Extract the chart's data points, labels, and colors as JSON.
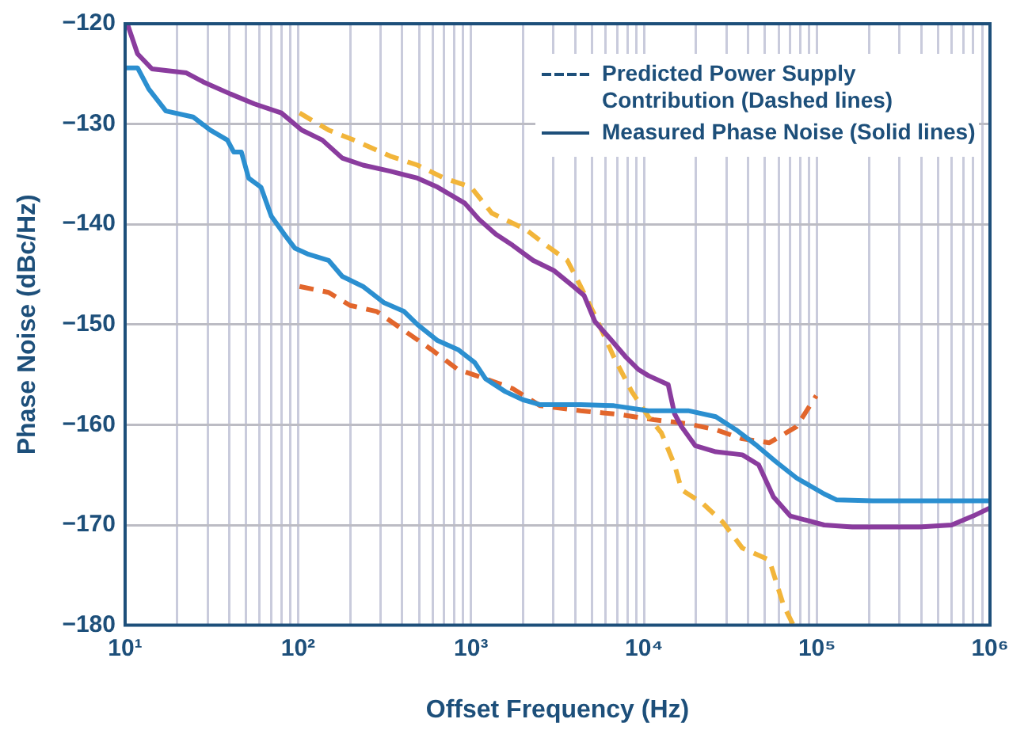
{
  "chart_data": {
    "type": "line",
    "xlabel": "Offset Frequency (Hz)",
    "ylabel": "Phase Noise (dBc/Hz)",
    "log": "x",
    "grid": true,
    "marker": "none",
    "xlim": [
      10,
      1000000
    ],
    "xticks": [
      {
        "value": 10,
        "label": "10¹"
      },
      {
        "value": 20,
        "label": null
      },
      {
        "value": 30,
        "label": null
      },
      {
        "value": 40,
        "label": null
      },
      {
        "value": 50,
        "label": null
      },
      {
        "value": 60,
        "label": null
      },
      {
        "value": 70,
        "label": null
      },
      {
        "value": 80,
        "label": null
      },
      {
        "value": 90,
        "label": null
      },
      {
        "value": 100,
        "label": "10²"
      },
      {
        "value": 200,
        "label": null
      },
      {
        "value": 300,
        "label": null
      },
      {
        "value": 400,
        "label": null
      },
      {
        "value": 500,
        "label": null
      },
      {
        "value": 600,
        "label": null
      },
      {
        "value": 700,
        "label": null
      },
      {
        "value": 800,
        "label": null
      },
      {
        "value": 900,
        "label": null
      },
      {
        "value": 1000,
        "label": "10³"
      },
      {
        "value": 2000,
        "label": null
      },
      {
        "value": 3000,
        "label": null
      },
      {
        "value": 4000,
        "label": null
      },
      {
        "value": 5000,
        "label": null
      },
      {
        "value": 6000,
        "label": null
      },
      {
        "value": 7000,
        "label": null
      },
      {
        "value": 8000,
        "label": null
      },
      {
        "value": 9000,
        "label": null
      },
      {
        "value": 10000,
        "label": "10⁴"
      },
      {
        "value": 20000,
        "label": null
      },
      {
        "value": 30000,
        "label": null
      },
      {
        "value": 40000,
        "label": null
      },
      {
        "value": 50000,
        "label": null
      },
      {
        "value": 60000,
        "label": null
      },
      {
        "value": 70000,
        "label": null
      },
      {
        "value": 80000,
        "label": null
      },
      {
        "value": 90000,
        "label": null
      },
      {
        "value": 100000,
        "label": "10⁵"
      },
      {
        "value": 200000,
        "label": null
      },
      {
        "value": 300000,
        "label": null
      },
      {
        "value": 400000,
        "label": null
      },
      {
        "value": 500000,
        "label": null
      },
      {
        "value": 600000,
        "label": null
      },
      {
        "value": 700000,
        "label": null
      },
      {
        "value": 800000,
        "label": null
      },
      {
        "value": 900000,
        "label": null
      },
      {
        "value": 1000000,
        "label": "10⁶"
      }
    ],
    "ylim": [
      -180,
      -120
    ],
    "yticks": [
      -180,
      -170,
      -160,
      -150,
      -140,
      -130,
      -120
    ],
    "annotations": [
      "Predicted Power Supply Contribution (Dashed lines)",
      "Measured Phase Noise (Solid lines)"
    ],
    "series": [
      {
        "color": "#2b8fd0",
        "line_style": "solid",
        "x": [
          10,
          11.8,
          13.7,
          17.2,
          24.7,
          31,
          39,
          42.5,
          47,
          51.8,
          61,
          70,
          84,
          96,
          115,
          150,
          180,
          237,
          312,
          410,
          490,
          640,
          840,
          1050,
          1210,
          1580,
          1990,
          2510,
          4300,
          6700,
          10600,
          18000,
          26000,
          34000,
          45000,
          58000,
          76000,
          110000,
          130000,
          210000,
          390000,
          1000000
        ],
        "values": [
          -124.4,
          -124.4,
          -126.5,
          -128.7,
          -129.3,
          -130.6,
          -131.6,
          -132.8,
          -132.8,
          -135.4,
          -136.3,
          -139.2,
          -141.1,
          -142.4,
          -143,
          -143.6,
          -145.2,
          -146.2,
          -147.8,
          -148.7,
          -150,
          -151.6,
          -152.5,
          -153.8,
          -155.4,
          -156.7,
          -157.5,
          -158,
          -158,
          -158.1,
          -158.6,
          -158.6,
          -159.2,
          -160.5,
          -162.1,
          -163.7,
          -165.3,
          -166.9,
          -167.5,
          -167.6,
          -167.6,
          -167.6
        ]
      },
      {
        "color": "#8a3c9e",
        "line_style": "solid",
        "x": [
          10.3,
          11.8,
          14.3,
          22.6,
          28.3,
          40.6,
          56,
          80,
          105,
          138,
          180,
          237,
          340,
          490,
          640,
          920,
          1110,
          1390,
          1740,
          2280,
          3000,
          3900,
          4500,
          5200,
          6500,
          7800,
          9300,
          10600,
          13800,
          15000,
          16500,
          19800,
          26000,
          37000,
          46000,
          56000,
          70000,
          110000,
          160000,
          390000,
          600000,
          800000,
          1000000
        ],
        "values": [
          -120,
          -123,
          -124.5,
          -124.9,
          -125.8,
          -127,
          -128,
          -128.9,
          -130.6,
          -131.6,
          -133.4,
          -134.1,
          -134.7,
          -135.4,
          -136.3,
          -137.9,
          -139.5,
          -141,
          -142.1,
          -143.6,
          -144.6,
          -146.2,
          -147.1,
          -149.7,
          -151.6,
          -153.2,
          -154.5,
          -155.1,
          -156,
          -158.9,
          -160.2,
          -162.1,
          -162.7,
          -163,
          -164,
          -167.2,
          -169.1,
          -170,
          -170.2,
          -170.2,
          -170,
          -169.1,
          -168.3
        ]
      },
      {
        "color": "#f2b53a",
        "line_style": "dashed",
        "x": [
          102,
          150,
          217,
          340,
          490,
          700,
          1000,
          1320,
          2060,
          2720,
          3600,
          4300,
          5200,
          6800,
          8500,
          10600,
          12600,
          15000,
          16500,
          21700,
          28500,
          37000,
          53000,
          64000,
          73000
        ],
        "values": [
          -128.9,
          -130.6,
          -131.7,
          -133.2,
          -134.1,
          -135.4,
          -136.3,
          -138.9,
          -140.5,
          -142.1,
          -143.6,
          -146.2,
          -149.1,
          -153.5,
          -156.7,
          -159.2,
          -160.8,
          -164,
          -166.5,
          -167.8,
          -169.7,
          -172.3,
          -173.5,
          -178,
          -180
        ]
      },
      {
        "color": "#e2662c",
        "line_style": "dashed",
        "x": [
          102,
          150,
          200,
          285,
          410,
          590,
          840,
          1210,
          1740,
          2510,
          4300,
          7400,
          11400,
          18000,
          26000,
          37000,
          53000,
          76000,
          99000
        ],
        "values": [
          -146.2,
          -146.8,
          -148.1,
          -148.7,
          -150.6,
          -152.5,
          -154.5,
          -155.4,
          -156.4,
          -158.1,
          -158.6,
          -159,
          -159.5,
          -159.9,
          -160.5,
          -161.4,
          -161.8,
          -160.2,
          -157.1
        ]
      }
    ]
  }
}
